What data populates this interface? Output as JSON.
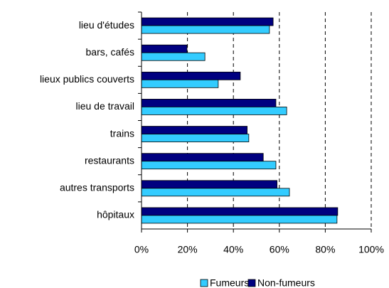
{
  "chart_data": {
    "type": "barh",
    "categories": [
      "lieu d'études",
      "bars, cafés",
      "lieux publics couverts",
      "lieu de travail",
      "trains",
      "restaurants",
      "autres transports",
      "hôpitaux"
    ],
    "series": [
      {
        "name": "Fumeurs",
        "color": "#33ccff",
        "values": [
          55.7,
          27.6,
          33.4,
          63.2,
          46.7,
          58.5,
          64.4,
          85.1
        ]
      },
      {
        "name": "Non-fumeurs",
        "color": "#000080",
        "values": [
          57.3,
          19.8,
          43,
          58.5,
          46,
          53,
          59,
          85.4
        ]
      }
    ],
    "xlim": [
      0,
      100
    ],
    "xticks": [
      {
        "value": 0,
        "label": "0%"
      },
      {
        "value": 20,
        "label": "20%"
      },
      {
        "value": 40,
        "label": "40%"
      },
      {
        "value": 60,
        "label": "60%"
      },
      {
        "value": 80,
        "label": "80%"
      },
      {
        "value": 100,
        "label": "100%"
      }
    ],
    "grid": true,
    "legend": "bottom"
  }
}
